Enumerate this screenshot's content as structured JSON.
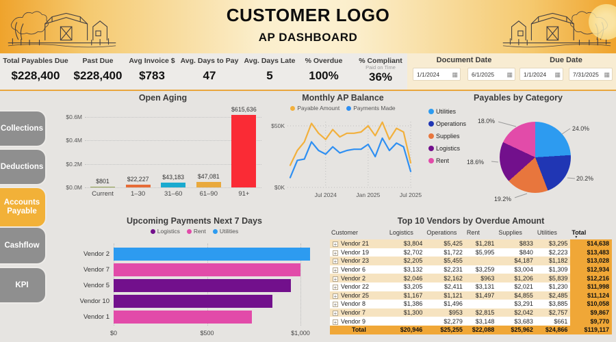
{
  "header": {
    "logo_title": "CUSTOMER LOGO",
    "subtitle": "AP DASHBOARD"
  },
  "kpis": [
    {
      "label": "Total Payables Due",
      "value": "$228,400"
    },
    {
      "label": "Past Due",
      "value": "$228,400"
    },
    {
      "label": "Avg Invoice $",
      "value": "$783"
    },
    {
      "label": "Avg. Days to Pay",
      "value": "47"
    },
    {
      "label": "Avg. Days Late",
      "value": "5"
    },
    {
      "label": "% Overdue",
      "value": "100%"
    },
    {
      "label": "% Compliant",
      "sublabel": "Paid on Time",
      "value": "36%"
    }
  ],
  "filters": {
    "document_date": {
      "label": "Document Date",
      "start": "1/1/2024",
      "end": "6/1/2025"
    },
    "due_date": {
      "label": "Due Date",
      "start": "1/1/2024",
      "end": "7/31/2025"
    }
  },
  "sidebar": {
    "items": [
      {
        "label": "Collections",
        "active": false
      },
      {
        "label": "Deductions",
        "active": false
      },
      {
        "label": "Accounts Payable",
        "active": true
      },
      {
        "label": "Cashflow",
        "active": false
      },
      {
        "label": "KPI",
        "active": false
      }
    ]
  },
  "colors": {
    "accent": "#F2B138",
    "header_amber": "#EFA32C",
    "table_total": "#F0A737",
    "row_stripe": "#F6E3C0"
  },
  "chart_data": [
    {
      "type": "bar",
      "title": "Open Aging",
      "categories": [
        "Current",
        "1–30",
        "31–60",
        "61–90",
        "91+"
      ],
      "values": [
        801,
        22227,
        43183,
        47081,
        615636
      ],
      "labels": [
        "$801",
        "$22,227",
        "$43,183",
        "$47,081",
        "$615,636"
      ],
      "bar_colors": [
        "#8FA04D",
        "#E66C37",
        "#1BAACF",
        "#E9A93D",
        "#FA2B35"
      ],
      "y_ticks": [
        "$0.0M",
        "$0.2M",
        "$0.4M",
        "$0.6M"
      ],
      "ylim": [
        0,
        650000
      ],
      "grid": true
    },
    {
      "type": "line",
      "title": "Monthly AP Balance",
      "x_ticks": [
        "Jul 2024",
        "Jan 2025",
        "Jul 2025"
      ],
      "y_ticks": [
        "$0K",
        "$50K"
      ],
      "ylim_k": [
        0,
        55
      ],
      "x_range_months": "Feb 2024 – Jul 2025",
      "series": [
        {
          "name": "Payable Amount",
          "color": "#F2B03C",
          "values_k": [
            18,
            30,
            37,
            52,
            44,
            39,
            47,
            41,
            44,
            44,
            45,
            50,
            42,
            53,
            39,
            48,
            45,
            20
          ]
        },
        {
          "name": "Payments Made",
          "color": "#2E8FF2",
          "values_k": [
            8,
            22,
            23,
            37,
            30,
            27,
            33,
            28,
            30,
            31,
            31,
            35,
            25,
            40,
            30,
            36,
            33,
            13
          ]
        }
      ],
      "legend_position": "top",
      "grid": true
    },
    {
      "type": "pie",
      "title": "Payables by Category",
      "slices": [
        {
          "label": "Utilities",
          "pct": 24.0,
          "pct_label": "24.0%",
          "color": "#2D9BF0"
        },
        {
          "label": "Operations",
          "pct": 20.2,
          "pct_label": "20.2%",
          "color": "#2036B4"
        },
        {
          "label": "Supplies",
          "pct": 19.2,
          "pct_label": "19.2%",
          "color": "#E8763D"
        },
        {
          "label": "Logistics",
          "pct": 18.6,
          "pct_label": "18.6%",
          "color": "#72108C"
        },
        {
          "label": "Rent",
          "pct": 18.0,
          "pct_label": "18.0%",
          "color": "#E24BA9"
        }
      ],
      "legend_position": "left"
    },
    {
      "type": "bar_horizontal",
      "title": "Upcoming Payments Next 7 Days",
      "legend": [
        {
          "label": "Logistics",
          "color": "#72108C"
        },
        {
          "label": "Rent",
          "color": "#E24BA9"
        },
        {
          "label": "Utilities",
          "color": "#2D9BF0"
        }
      ],
      "bars": [
        {
          "label": "Vendor 2",
          "value": 1050,
          "category": "Utilities"
        },
        {
          "label": "Vendor 7",
          "value": 1000,
          "category": "Rent"
        },
        {
          "label": "Vendor 5",
          "value": 950,
          "category": "Logistics"
        },
        {
          "label": "Vendor 10",
          "value": 850,
          "category": "Logistics"
        },
        {
          "label": "Vendor 1",
          "value": 740,
          "category": "Rent"
        }
      ],
      "x_ticks": [
        "$0",
        "$500",
        "$1,000"
      ],
      "x_tick_values": [
        0,
        500,
        1000
      ],
      "xlim": [
        0,
        1105
      ],
      "grid": true
    },
    {
      "type": "table",
      "title": "Top 10 Vendors by Overdue Amount",
      "columns": [
        "Customer",
        "Logistics",
        "Operations",
        "Rent",
        "Supplies",
        "Utilities",
        "Total"
      ],
      "sorted_by": "Total",
      "rows": [
        [
          "Vendor 21",
          "$3,804",
          "$5,425",
          "$1,281",
          "$833",
          "$3,295",
          "$14,638"
        ],
        [
          "Vendor 19",
          "$2,702",
          "$1,722",
          "$5,995",
          "$840",
          "$2,223",
          "$13,483"
        ],
        [
          "Vendor 23",
          "$2,205",
          "$5,455",
          "",
          "$4,187",
          "$1,182",
          "$13,028"
        ],
        [
          "Vendor 6",
          "$3,132",
          "$2,231",
          "$3,259",
          "$3,004",
          "$1,309",
          "$12,934"
        ],
        [
          "Vendor 2",
          "$2,046",
          "$2,162",
          "$963",
          "$1,206",
          "$5,839",
          "$12,216"
        ],
        [
          "Vendor 22",
          "$3,205",
          "$2,411",
          "$3,131",
          "$2,021",
          "$1,230",
          "$11,998"
        ],
        [
          "Vendor 25",
          "$1,167",
          "$1,121",
          "$1,497",
          "$4,855",
          "$2,485",
          "$11,124"
        ],
        [
          "Vendor 8",
          "$1,386",
          "$1,496",
          "",
          "$3,291",
          "$3,885",
          "$10,058"
        ],
        [
          "Vendor 7",
          "$1,300",
          "$953",
          "$2,815",
          "$2,042",
          "$2,757",
          "$9,867"
        ],
        [
          "Vendor 9",
          "",
          "$2,279",
          "$3,148",
          "$3,683",
          "$661",
          "$9,770"
        ]
      ],
      "total_row": [
        "Total",
        "$20,946",
        "$25,255",
        "$22,088",
        "$25,962",
        "$24,866",
        "$119,117"
      ]
    }
  ]
}
